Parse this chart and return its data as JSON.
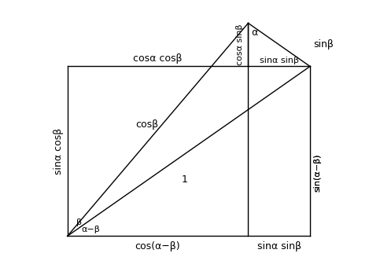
{
  "alpha_deg": 55,
  "beta_deg": 20,
  "fig_width": 4.74,
  "fig_height": 3.27,
  "dpi": 100,
  "line_color": "#000000",
  "bg_color": "#ffffff",
  "font_size": 9,
  "labels": {
    "cos_alpha_cos_beta": "cosα cosβ",
    "sin_alpha_cos_beta": "sinα cosβ",
    "cos_beta": "cosβ",
    "one": "1",
    "alpha_angle": "α",
    "beta_angle": "β",
    "alpha_minus_beta": "α−β",
    "cos_alpha_sin_beta": "cosα sinβ",
    "sin_beta": "sinβ",
    "sin_alpha_sin_beta": "sinα sinβ",
    "cos_alpha_minus_beta": "cos(α−β)",
    "sin_alpha_minus_beta": "sin(α−β)"
  }
}
